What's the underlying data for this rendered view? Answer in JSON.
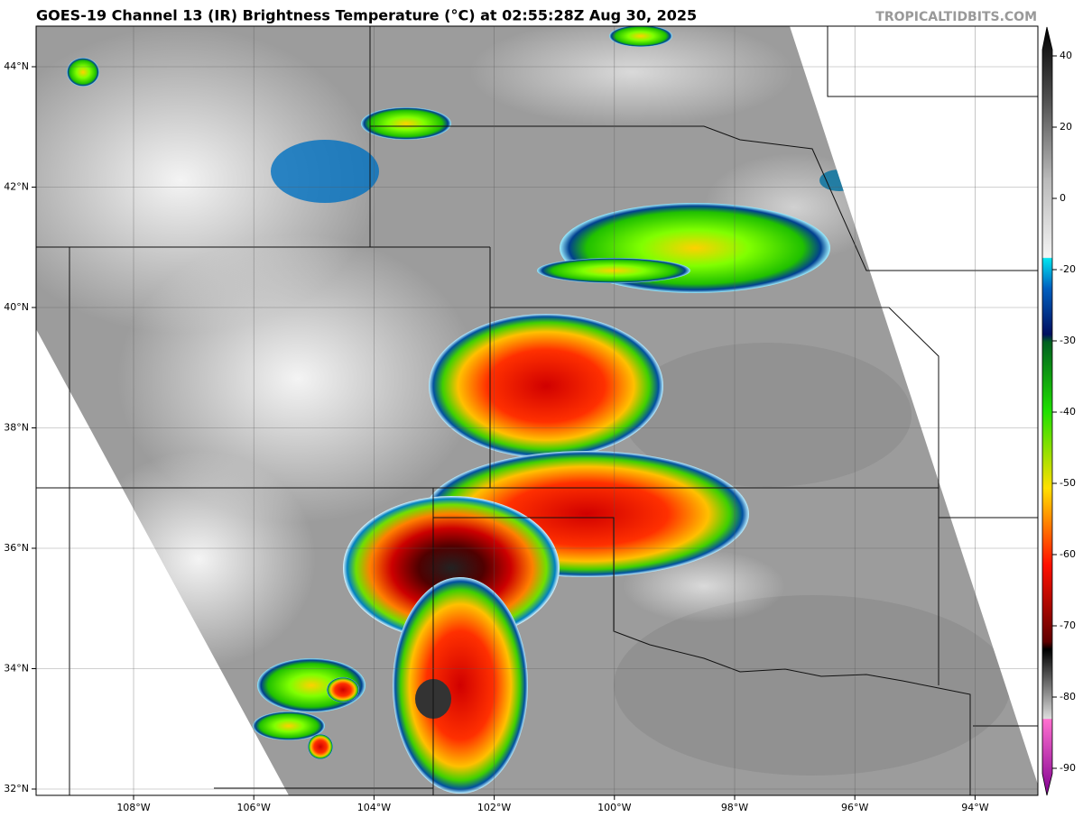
{
  "header": {
    "title": "GOES-19 Channel 13 (IR) Brightness Temperature (°C) at 02:55:28Z Aug 30, 2025",
    "source": "TROPICALTIDBITS.COM"
  },
  "map": {
    "lat_labels": [
      "44°N",
      "42°N",
      "40°N",
      "38°N",
      "36°N",
      "34°N",
      "32°N"
    ],
    "lon_labels": [
      "108°W",
      "106°W",
      "104°W",
      "102°W",
      "100°W",
      "98°W",
      "96°W",
      "94°W"
    ]
  },
  "colorbar": {
    "ticks": [
      40,
      20,
      0,
      -20,
      -30,
      -40,
      -50,
      -60,
      -70,
      -80,
      -90
    ]
  }
}
